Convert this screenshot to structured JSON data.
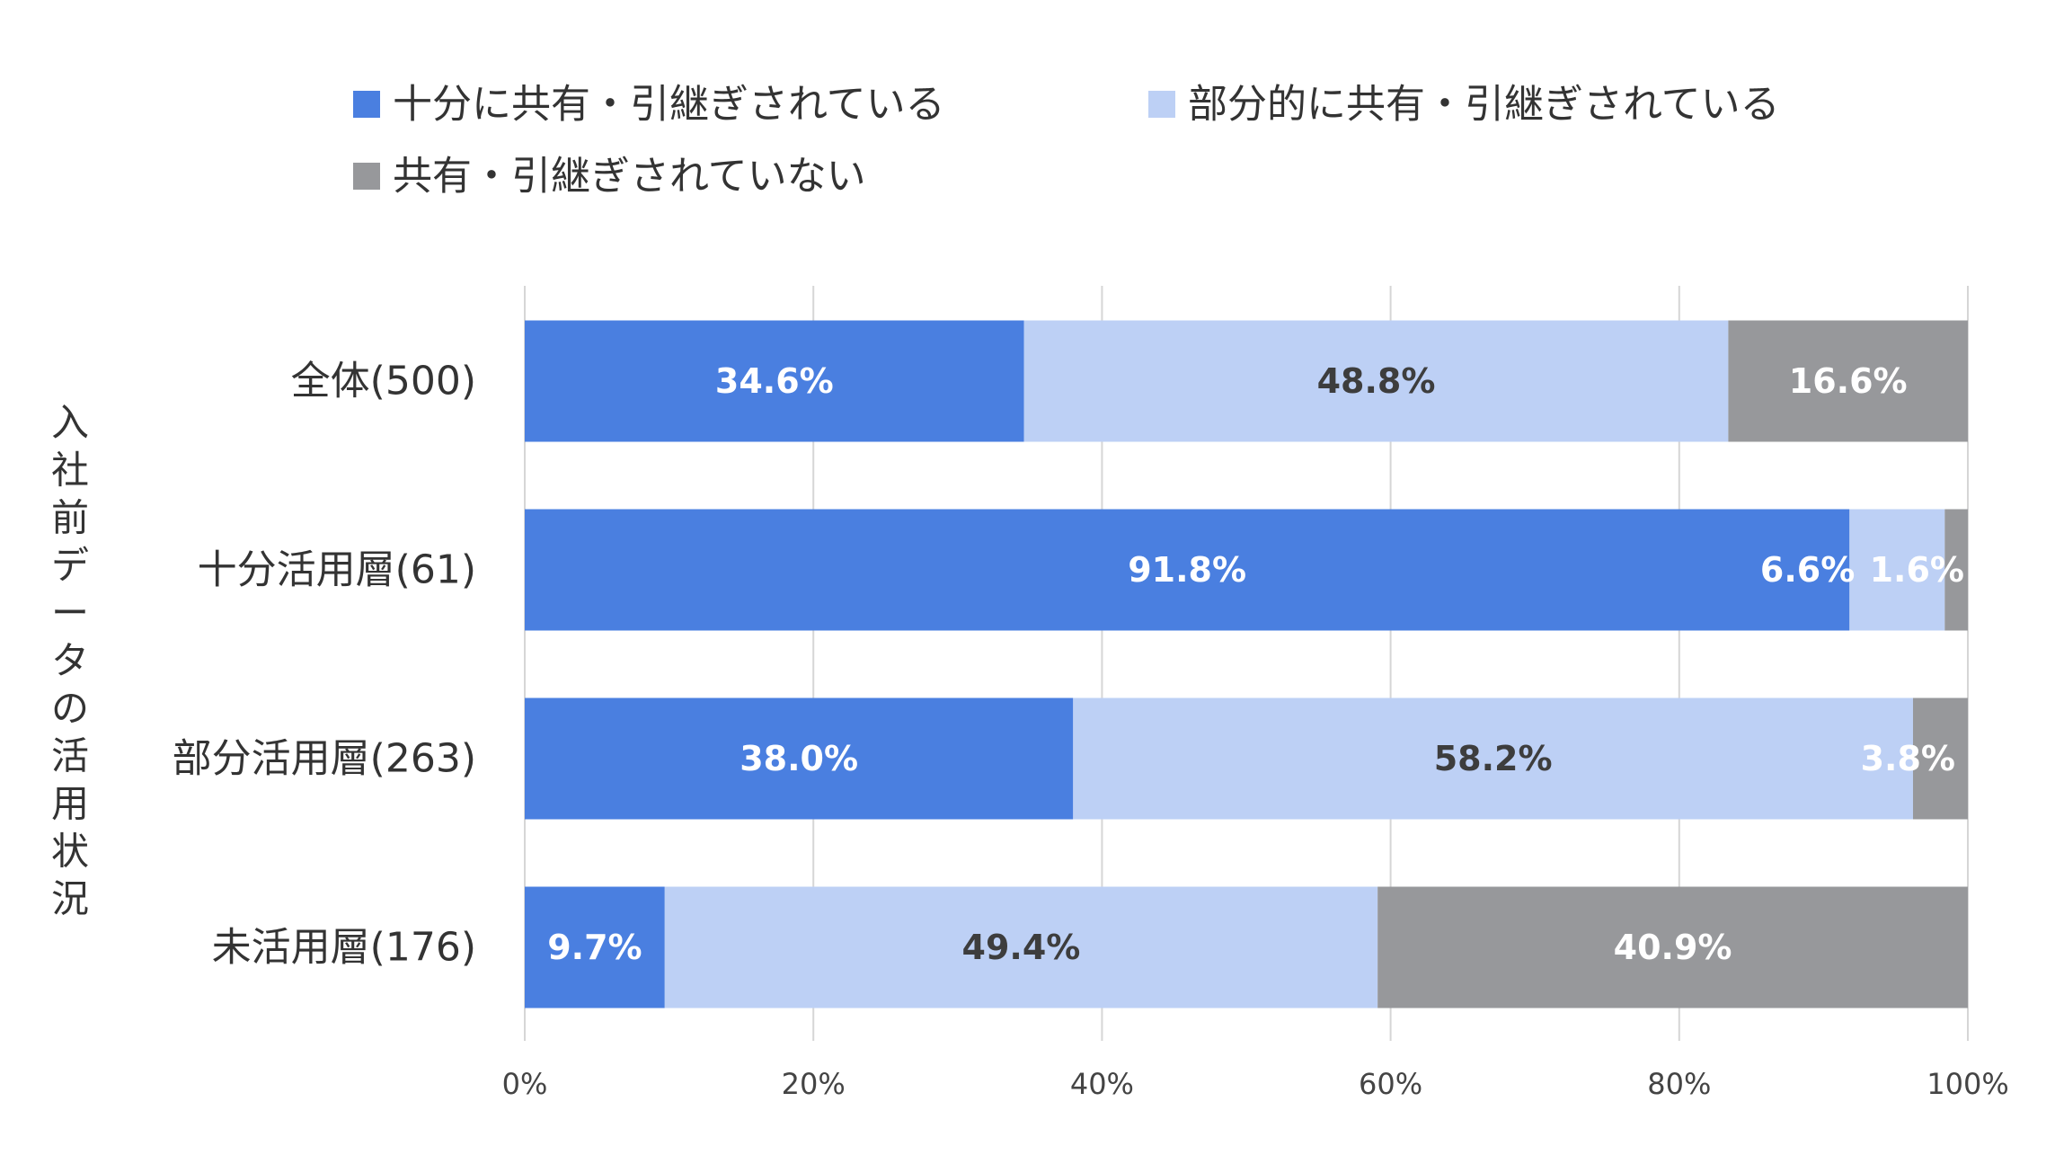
{
  "chart_data": {
    "type": "bar",
    "orientation": "horizontal",
    "stacked": true,
    "title": "",
    "ylabel": "入社前データの活用状況",
    "xlabel": "",
    "xlim": [
      0,
      100
    ],
    "x_ticks": [
      "0%",
      "20%",
      "40%",
      "60%",
      "80%",
      "100%"
    ],
    "grid": true,
    "legend_position": "top",
    "categories": [
      "全体(500)",
      "十分活用層(61)",
      "部分活用層(263)",
      "未活用層(176)"
    ],
    "series": [
      {
        "name": "十分に共有・引継ぎされている",
        "color": "#4a7fe0",
        "label_color": "#ffffff",
        "values": [
          34.6,
          91.8,
          38.0,
          9.7
        ],
        "labels": [
          "34.6%",
          "91.8%",
          "38.0%",
          "9.7%"
        ]
      },
      {
        "name": "部分的に共有・引継ぎされている",
        "color": "#bdd0f5",
        "label_color": "#3d3d3d",
        "values": [
          48.8,
          6.6,
          58.2,
          49.4
        ],
        "labels": [
          "48.8%",
          "6.6%",
          "58.2%",
          "49.4%"
        ]
      },
      {
        "name": "共有・引継ぎされていない",
        "color": "#97989b",
        "label_color": "#ffffff",
        "values": [
          16.6,
          1.6,
          3.8,
          40.9
        ],
        "labels": [
          "16.6%",
          "1.6%",
          "3.8%",
          "40.9%"
        ]
      }
    ]
  }
}
